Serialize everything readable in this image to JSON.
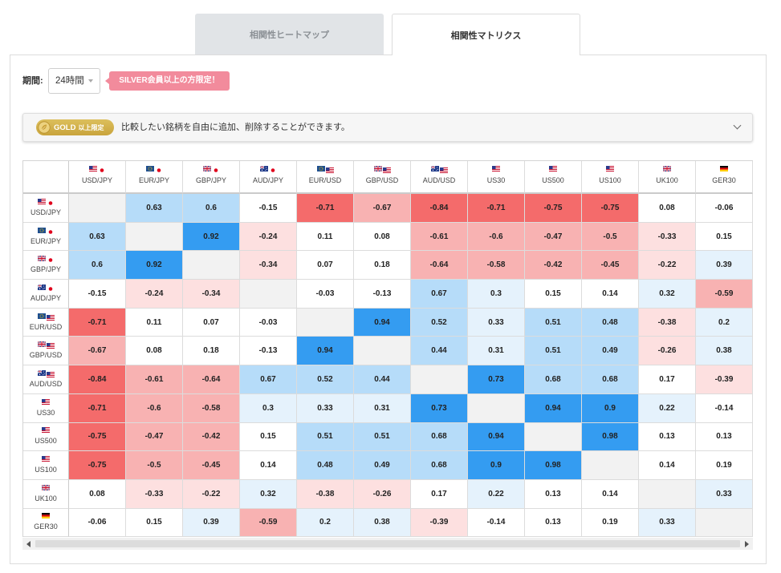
{
  "tabs": {
    "heatmap": "相関性ヒートマップ",
    "matrix": "相関性マトリクス"
  },
  "period": {
    "label": "期間:",
    "value": "24時間"
  },
  "silver_badge": "SILVER会員以上の方限定！",
  "notice": {
    "badge_main": "GOLD",
    "badge_sub": "以上限定",
    "text": "比較したい銘柄を自由に追加、削除することができます。"
  },
  "symbol_icons": [
    [
      "us-flag",
      "jp-flag"
    ],
    [
      "eu-flag",
      "jp-flag"
    ],
    [
      "gb-flag",
      "jp-flag"
    ],
    [
      "au-flag",
      "jp-flag"
    ],
    [
      "eu-flag",
      "us-flag"
    ],
    [
      "gb-flag",
      "us-flag"
    ],
    [
      "au-flag",
      "us-flag"
    ],
    [
      "us-flag"
    ],
    [
      "us-flag"
    ],
    [
      "us-flag"
    ],
    [
      "gb-flag"
    ],
    [
      "de-flag"
    ]
  ],
  "colors": {
    "strong_positive": "#349cf1",
    "positive": "#b6dcf9",
    "weak_positive": "#e5f2fc",
    "neutral": "#ffffff",
    "weak_negative": "#fde0e0",
    "negative": "#f8b2b2",
    "strong_negative": "#f46b6b",
    "diagonal": "#f2f2f2",
    "silver_badge": "#f28b9c",
    "gold_badge_top": "#dcbf5c",
    "gold_badge_bottom": "#c9a43c"
  },
  "chart_data": {
    "type": "heatmap",
    "x": [
      "USD/JPY",
      "EUR/JPY",
      "GBP/JPY",
      "AUD/JPY",
      "EUR/USD",
      "GBP/USD",
      "AUD/USD",
      "US30",
      "US500",
      "US100",
      "UK100",
      "GER30"
    ],
    "y": [
      "USD/JPY",
      "EUR/JPY",
      "GBP/JPY",
      "AUD/JPY",
      "EUR/USD",
      "GBP/USD",
      "AUD/USD",
      "US30",
      "US500",
      "US100",
      "UK100",
      "GER30"
    ],
    "values": [
      [
        null,
        0.63,
        0.6,
        -0.15,
        -0.71,
        -0.67,
        -0.84,
        -0.71,
        -0.75,
        -0.75,
        0.08,
        -0.06
      ],
      [
        0.63,
        null,
        0.92,
        -0.24,
        0.11,
        0.08,
        -0.61,
        -0.6,
        -0.47,
        -0.5,
        -0.33,
        0.15
      ],
      [
        0.6,
        0.92,
        null,
        -0.34,
        0.07,
        0.18,
        -0.64,
        -0.58,
        -0.42,
        -0.45,
        -0.22,
        0.39
      ],
      [
        -0.15,
        -0.24,
        -0.34,
        null,
        -0.03,
        -0.13,
        0.67,
        0.3,
        0.15,
        0.14,
        0.32,
        -0.59
      ],
      [
        -0.71,
        0.11,
        0.07,
        -0.03,
        null,
        0.94,
        0.52,
        0.33,
        0.51,
        0.48,
        -0.38,
        0.2
      ],
      [
        -0.67,
        0.08,
        0.18,
        -0.13,
        0.94,
        null,
        0.44,
        0.31,
        0.51,
        0.49,
        -0.26,
        0.38
      ],
      [
        -0.84,
        -0.61,
        -0.64,
        0.67,
        0.52,
        0.44,
        null,
        0.73,
        0.68,
        0.68,
        0.17,
        -0.39
      ],
      [
        -0.71,
        -0.6,
        -0.58,
        0.3,
        0.33,
        0.31,
        0.73,
        null,
        0.94,
        0.9,
        0.22,
        -0.14
      ],
      [
        -0.75,
        -0.47,
        -0.42,
        0.15,
        0.51,
        0.51,
        0.68,
        0.94,
        null,
        0.98,
        0.13,
        0.13
      ],
      [
        -0.75,
        -0.5,
        -0.45,
        0.14,
        0.48,
        0.49,
        0.68,
        0.9,
        0.98,
        null,
        0.14,
        0.19
      ],
      [
        0.08,
        -0.33,
        -0.22,
        0.32,
        -0.38,
        -0.26,
        0.17,
        0.22,
        0.13,
        0.14,
        null,
        0.33
      ],
      [
        -0.06,
        0.15,
        0.39,
        -0.59,
        0.2,
        0.38,
        -0.39,
        -0.14,
        0.13,
        0.19,
        0.33,
        null
      ]
    ]
  }
}
